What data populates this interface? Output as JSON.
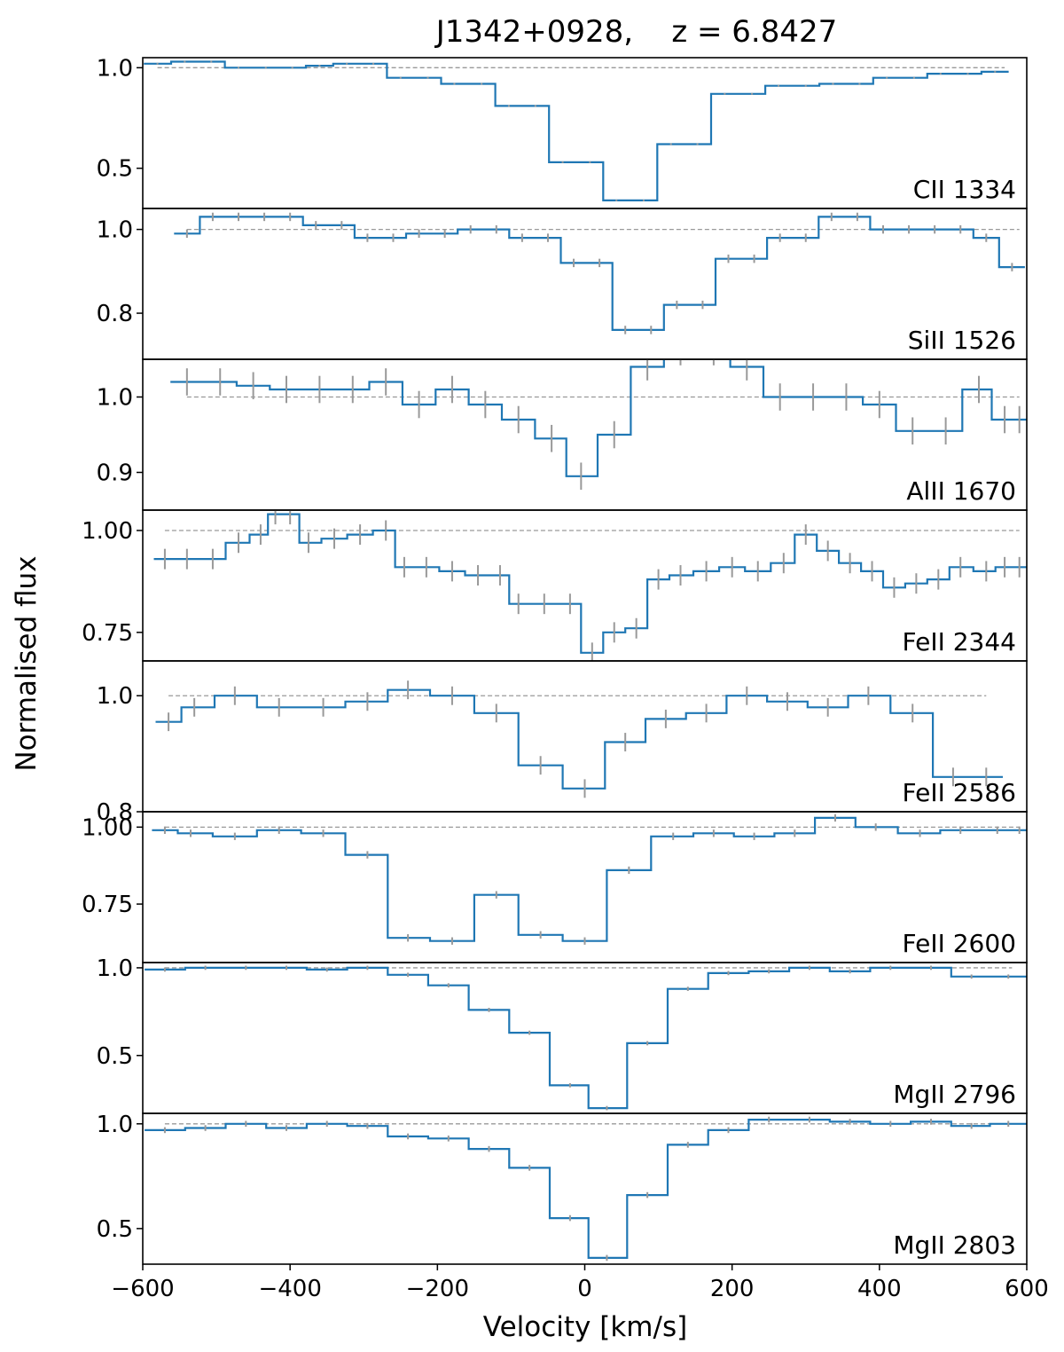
{
  "chart_data": {
    "type": "line",
    "title": "J1342+0928,    z = 6.8427",
    "xlabel": "Velocity [km/s]",
    "ylabel": "Normalised flux",
    "xlim": [
      -600,
      600
    ],
    "xticks": [
      -600,
      -400,
      -200,
      0,
      200,
      400,
      600
    ],
    "xtick_labels": [
      "−600",
      "−400",
      "−200",
      "0",
      "200",
      "400",
      "600"
    ],
    "line_color": "#1f77b4",
    "error_color": "#999999",
    "continuum_color": "#999999",
    "panels": [
      {
        "label": "CII 1334",
        "ylim": [
          0.3,
          1.05
        ],
        "yticks": [
          0.5,
          1.0
        ],
        "ytick_labels": [
          "0.5",
          "1.0"
        ],
        "continuum": [
          -580,
          570
        ],
        "x": [
          -580,
          -543,
          -507,
          -470,
          -433,
          -397,
          -360,
          -323,
          -287,
          -250,
          -213,
          -177,
          -140,
          -103,
          -67,
          -30,
          7,
          43,
          80,
          117,
          153,
          190,
          227,
          263,
          300,
          337,
          373,
          410,
          447,
          483,
          520,
          557
        ],
        "y": [
          1.02,
          1.03,
          1.03,
          1.0,
          1.0,
          1.0,
          1.01,
          1.02,
          1.02,
          0.95,
          0.95,
          0.92,
          0.92,
          0.81,
          0.81,
          0.53,
          0.53,
          0.34,
          0.34,
          0.62,
          0.62,
          0.87,
          0.87,
          0.91,
          0.91,
          0.92,
          0.92,
          0.95,
          0.95,
          0.97,
          0.97,
          0.98
        ],
        "err": [
          0.004,
          0.004,
          0.004,
          0.004,
          0.004,
          0.004,
          0.004,
          0.004,
          0.004,
          0.004,
          0.004,
          0.004,
          0.004,
          0.004,
          0.004,
          0.004,
          0.004,
          0.004,
          0.004,
          0.004,
          0.004,
          0.004,
          0.004,
          0.004,
          0.004,
          0.004,
          0.004,
          0.004,
          0.004,
          0.004,
          0.004,
          0.004
        ]
      },
      {
        "label": "SiII 1526",
        "ylim": [
          0.69,
          1.05
        ],
        "yticks": [
          0.8,
          1.0
        ],
        "ytick_labels": [
          "0.8",
          "1.0"
        ],
        "continuum": [
          -540,
          590
        ],
        "x": [
          -540,
          -505,
          -470,
          -435,
          -400,
          -365,
          -330,
          -295,
          -260,
          -225,
          -190,
          -155,
          -120,
          -85,
          -50,
          -15,
          20,
          55,
          90,
          125,
          160,
          195,
          230,
          265,
          300,
          335,
          370,
          405,
          440,
          475,
          510,
          545,
          580
        ],
        "y": [
          0.99,
          1.03,
          1.03,
          1.03,
          1.03,
          1.01,
          1.01,
          0.98,
          0.98,
          0.99,
          0.99,
          1.0,
          1.0,
          0.98,
          0.98,
          0.92,
          0.92,
          0.76,
          0.76,
          0.82,
          0.82,
          0.93,
          0.93,
          0.98,
          0.98,
          1.03,
          1.03,
          1.0,
          1.0,
          1.0,
          1.0,
          0.98,
          0.91
        ],
        "err": [
          0.01,
          0.01,
          0.01,
          0.01,
          0.01,
          0.01,
          0.01,
          0.01,
          0.01,
          0.01,
          0.01,
          0.01,
          0.01,
          0.01,
          0.01,
          0.01,
          0.01,
          0.01,
          0.01,
          0.01,
          0.01,
          0.01,
          0.01,
          0.01,
          0.01,
          0.01,
          0.01,
          0.01,
          0.01,
          0.01,
          0.01,
          0.01,
          0.01
        ]
      },
      {
        "label": "AlII 1670",
        "ylim": [
          0.85,
          1.05
        ],
        "yticks": [
          0.9,
          1.0
        ],
        "ytick_labels": [
          "0.9",
          "1.0"
        ],
        "continuum": [
          -540,
          590
        ],
        "x": [
          -540,
          -495,
          -450,
          -405,
          -360,
          -315,
          -270,
          -225,
          -180,
          -135,
          -90,
          -45,
          -5,
          40,
          85,
          130,
          175,
          220,
          265,
          310,
          355,
          400,
          445,
          490,
          535,
          570,
          590
        ],
        "y": [
          1.02,
          1.02,
          1.015,
          1.01,
          1.01,
          1.01,
          1.02,
          0.99,
          1.01,
          0.99,
          0.97,
          0.945,
          0.895,
          0.95,
          1.04,
          1.06,
          1.06,
          1.04,
          1.0,
          1.0,
          1.0,
          0.99,
          0.955,
          0.955,
          1.01,
          0.97,
          0.97
        ],
        "err": [
          0.018,
          0.018,
          0.018,
          0.018,
          0.018,
          0.018,
          0.018,
          0.018,
          0.018,
          0.018,
          0.018,
          0.018,
          0.018,
          0.018,
          0.018,
          0.018,
          0.018,
          0.018,
          0.018,
          0.018,
          0.018,
          0.018,
          0.018,
          0.018,
          0.018,
          0.018,
          0.018
        ]
      },
      {
        "label": "FeII 2344",
        "ylim": [
          0.68,
          1.05
        ],
        "yticks": [
          0.75,
          1.0
        ],
        "ytick_labels": [
          "0.75",
          "1.00"
        ],
        "continuum": [
          -570,
          590
        ],
        "x": [
          -570,
          -540,
          -505,
          -470,
          -440,
          -420,
          -400,
          -375,
          -340,
          -305,
          -270,
          -245,
          -215,
          -180,
          -145,
          -115,
          -90,
          -55,
          -20,
          10,
          40,
          70,
          100,
          130,
          165,
          200,
          235,
          270,
          300,
          330,
          360,
          390,
          420,
          450,
          480,
          510,
          545,
          570,
          590
        ],
        "y": [
          0.93,
          0.93,
          0.93,
          0.97,
          0.99,
          1.04,
          1.04,
          0.97,
          0.98,
          0.99,
          1.0,
          0.91,
          0.91,
          0.9,
          0.89,
          0.89,
          0.82,
          0.82,
          0.82,
          0.7,
          0.75,
          0.76,
          0.88,
          0.89,
          0.9,
          0.91,
          0.9,
          0.92,
          0.99,
          0.95,
          0.92,
          0.9,
          0.86,
          0.87,
          0.88,
          0.91,
          0.9,
          0.91,
          0.91
        ],
        "err": [
          0.025,
          0.025,
          0.025,
          0.025,
          0.025,
          0.025,
          0.025,
          0.025,
          0.025,
          0.025,
          0.025,
          0.025,
          0.025,
          0.025,
          0.025,
          0.025,
          0.025,
          0.025,
          0.025,
          0.025,
          0.025,
          0.025,
          0.025,
          0.025,
          0.025,
          0.025,
          0.025,
          0.025,
          0.025,
          0.025,
          0.025,
          0.025,
          0.025,
          0.025,
          0.025,
          0.025,
          0.025,
          0.025,
          0.025
        ]
      },
      {
        "label": "FeII 2586",
        "ylim": [
          0.8,
          1.06
        ],
        "yticks": [
          0.8,
          1.0
        ],
        "ytick_labels": [
          "0.8",
          "1.0"
        ],
        "continuum": [
          -565,
          545
        ],
        "x": [
          -565,
          -530,
          -475,
          -415,
          -355,
          -295,
          -240,
          -180,
          -120,
          -60,
          0,
          55,
          110,
          165,
          220,
          275,
          330,
          385,
          445,
          500,
          545
        ],
        "y": [
          0.955,
          0.98,
          1.0,
          0.98,
          0.98,
          0.99,
          1.01,
          1.0,
          0.97,
          0.88,
          0.84,
          0.92,
          0.96,
          0.97,
          1.0,
          0.99,
          0.98,
          1.0,
          0.97,
          0.86,
          0.86
        ],
        "err": [
          0.016,
          0.016,
          0.016,
          0.016,
          0.016,
          0.016,
          0.016,
          0.016,
          0.016,
          0.016,
          0.016,
          0.016,
          0.016,
          0.016,
          0.016,
          0.016,
          0.016,
          0.016,
          0.016,
          0.016,
          0.016
        ]
      },
      {
        "label": "FeII 2600",
        "ylim": [
          0.56,
          1.05
        ],
        "yticks": [
          0.75,
          1.0
        ],
        "ytick_labels": [
          "0.75",
          "1.00"
        ],
        "continuum": [
          -570,
          590
        ],
        "x": [
          -570,
          -535,
          -475,
          -415,
          -355,
          -295,
          -240,
          -180,
          -120,
          -60,
          0,
          60,
          120,
          175,
          230,
          285,
          340,
          395,
          455,
          510,
          560,
          590
        ],
        "y": [
          0.99,
          0.98,
          0.97,
          0.99,
          0.98,
          0.91,
          0.64,
          0.63,
          0.78,
          0.65,
          0.63,
          0.86,
          0.97,
          0.98,
          0.97,
          0.98,
          1.03,
          1.0,
          0.98,
          0.99,
          0.99,
          0.99
        ],
        "err": [
          0.012,
          0.012,
          0.012,
          0.012,
          0.012,
          0.012,
          0.012,
          0.012,
          0.012,
          0.012,
          0.012,
          0.012,
          0.012,
          0.012,
          0.012,
          0.012,
          0.012,
          0.012,
          0.012,
          0.012,
          0.012,
          0.012
        ]
      },
      {
        "label": "MgII 2796",
        "ylim": [
          0.17,
          1.03
        ],
        "yticks": [
          0.5,
          1.0
        ],
        "ytick_labels": [
          "0.5",
          "1.0"
        ],
        "continuum": [
          -570,
          580
        ],
        "x": [
          -570,
          -515,
          -460,
          -405,
          -350,
          -295,
          -240,
          -185,
          -130,
          -75,
          -20,
          30,
          85,
          140,
          195,
          250,
          305,
          360,
          415,
          470,
          525,
          575
        ],
        "y": [
          0.99,
          1.0,
          1.0,
          1.0,
          0.99,
          1.0,
          0.96,
          0.9,
          0.76,
          0.63,
          0.33,
          0.2,
          0.57,
          0.88,
          0.97,
          0.98,
          1.0,
          0.98,
          1.0,
          1.0,
          0.95,
          0.95
        ],
        "err": [
          0.012,
          0.012,
          0.012,
          0.012,
          0.012,
          0.012,
          0.012,
          0.012,
          0.012,
          0.012,
          0.012,
          0.012,
          0.012,
          0.012,
          0.012,
          0.012,
          0.012,
          0.012,
          0.012,
          0.012,
          0.012,
          0.012
        ]
      },
      {
        "label": "MgII 2803",
        "ylim": [
          0.33,
          1.05
        ],
        "yticks": [
          0.5,
          1.0
        ],
        "ytick_labels": [
          "0.5",
          "1.0"
        ],
        "continuum": [
          -570,
          580
        ],
        "x": [
          -570,
          -515,
          -460,
          -405,
          -350,
          -295,
          -240,
          -185,
          -130,
          -75,
          -20,
          30,
          85,
          140,
          195,
          250,
          305,
          360,
          415,
          470,
          525,
          575
        ],
        "y": [
          0.97,
          0.98,
          1.0,
          0.98,
          1.0,
          0.99,
          0.94,
          0.93,
          0.88,
          0.79,
          0.55,
          0.36,
          0.66,
          0.9,
          0.97,
          1.02,
          1.02,
          1.01,
          1.0,
          1.01,
          0.99,
          1.0
        ],
        "err": [
          0.014,
          0.014,
          0.014,
          0.014,
          0.014,
          0.014,
          0.014,
          0.014,
          0.014,
          0.014,
          0.014,
          0.014,
          0.014,
          0.014,
          0.014,
          0.014,
          0.014,
          0.014,
          0.014,
          0.014,
          0.014,
          0.014
        ]
      }
    ]
  }
}
